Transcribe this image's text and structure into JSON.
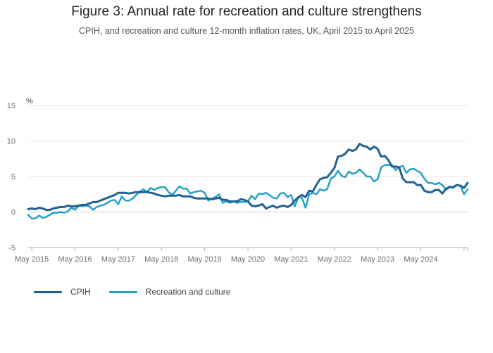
{
  "title": "Figure 3: Annual rate for recreation and culture strengthens",
  "subtitle": "CPIH, and recreation and culture 12-month inflation rates, UK, April 2015 to April 2025",
  "chart_data": {
    "type": "line",
    "unit_label": "%",
    "ylim": [
      -5,
      15
    ],
    "yticks": [
      -5,
      0,
      5,
      10,
      15
    ],
    "xlim": [
      "2015-04",
      "2025-04"
    ],
    "x_tick_labels": [
      "May 2015",
      "May 2016",
      "May 2017",
      "May 2018",
      "May 2019",
      "May 2020",
      "May 2021",
      "May 2022",
      "May 2023",
      "May 2024"
    ],
    "grid": true,
    "legend_position": "bottom-left",
    "series": [
      {
        "name": "CPIH",
        "color": "#206095",
        "values": [
          0.4,
          0.5,
          0.4,
          0.6,
          0.5,
          0.3,
          0.3,
          0.5,
          0.6,
          0.7,
          0.7,
          0.9,
          0.8,
          0.8,
          0.9,
          1.0,
          1.0,
          1.2,
          1.4,
          1.4,
          1.6,
          1.8,
          2.0,
          2.2,
          2.4,
          2.7,
          2.7,
          2.7,
          2.6,
          2.7,
          2.8,
          2.8,
          2.8,
          2.8,
          2.7,
          2.6,
          2.4,
          2.3,
          2.2,
          2.3,
          2.3,
          2.3,
          2.4,
          2.2,
          2.2,
          2.2,
          2.0,
          1.9,
          1.9,
          1.9,
          1.9,
          1.8,
          1.9,
          2.0,
          1.7,
          1.7,
          1.5,
          1.5,
          1.5,
          1.8,
          1.7,
          1.5,
          0.9,
          0.8,
          0.9,
          1.1,
          0.5,
          0.7,
          0.9,
          0.6,
          0.8,
          0.9,
          0.7,
          1.0,
          1.6,
          2.1,
          2.4,
          2.1,
          3.0,
          2.9,
          3.8,
          4.6,
          4.8,
          4.9,
          5.5,
          6.2,
          7.8,
          7.9,
          8.2,
          8.8,
          8.6,
          8.8,
          9.6,
          9.3,
          9.2,
          8.8,
          9.2,
          8.9,
          7.8,
          7.9,
          7.3,
          6.4,
          6.4,
          6.3,
          4.7,
          4.2,
          4.2,
          4.2,
          3.8,
          3.8,
          3.0,
          2.8,
          2.8,
          3.1,
          3.1,
          2.6,
          3.3,
          3.5,
          3.5,
          3.8,
          3.7,
          3.4,
          4.1
        ]
      },
      {
        "name": "Recreation and culture",
        "color": "#27a0cc",
        "values": [
          -0.4,
          -0.9,
          -0.9,
          -0.5,
          -0.8,
          -0.7,
          -0.4,
          -0.1,
          -0.1,
          0.0,
          -0.1,
          0.1,
          0.6,
          0.3,
          0.9,
          0.8,
          0.9,
          0.8,
          0.3,
          0.7,
          0.9,
          1.0,
          1.3,
          1.6,
          1.7,
          1.1,
          2.2,
          1.6,
          1.6,
          1.9,
          2.4,
          2.9,
          3.2,
          2.8,
          3.4,
          3.1,
          3.4,
          3.5,
          3.5,
          2.8,
          2.4,
          3.0,
          3.6,
          3.3,
          3.3,
          2.6,
          2.8,
          2.9,
          3.0,
          2.7,
          1.6,
          1.9,
          2.1,
          2.5,
          1.3,
          1.5,
          1.3,
          1.5,
          1.3,
          1.4,
          1.4,
          1.5,
          2.3,
          1.8,
          2.6,
          2.5,
          2.7,
          2.4,
          2.0,
          1.9,
          2.6,
          2.7,
          2.1,
          2.4,
          0.8,
          2.1,
          2.0,
          0.6,
          2.5,
          2.7,
          2.5,
          3.2,
          3.0,
          3.2,
          4.7,
          5.0,
          5.8,
          5.1,
          4.9,
          5.7,
          5.4,
          5.5,
          6.0,
          5.5,
          5.0,
          5.0,
          4.3,
          4.6,
          6.3,
          6.6,
          6.6,
          6.6,
          5.9,
          6.3,
          6.5,
          5.5,
          6.0,
          6.1,
          5.8,
          5.5,
          4.7,
          4.1,
          4.1,
          3.9,
          4.1,
          3.8,
          3.1,
          3.6,
          3.4,
          3.8,
          3.7,
          2.5,
          3.2
        ]
      }
    ]
  }
}
